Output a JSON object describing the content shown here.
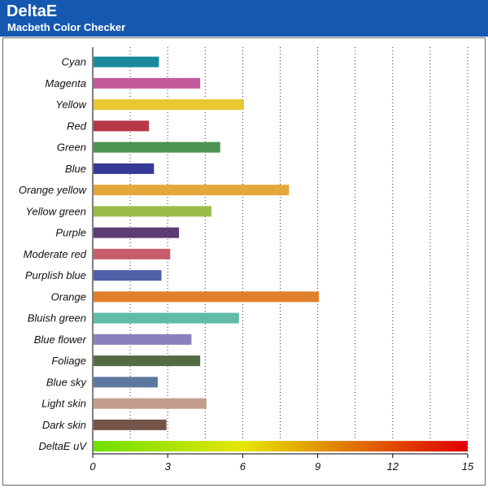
{
  "header": {
    "title": "DeltaE",
    "subtitle": "Macbeth Color Checker",
    "color": "#1558b0"
  },
  "chart_data": {
    "type": "bar",
    "orientation": "horizontal",
    "title": "DeltaE",
    "subtitle": "Macbeth Color Checker",
    "xlim": [
      0,
      15
    ],
    "xticks": [
      0,
      3,
      6,
      9,
      12,
      15
    ],
    "grid": "vertical-dotted",
    "categories": [
      "Cyan",
      "Magenta",
      "Yellow",
      "Red",
      "Green",
      "Blue",
      "Orange yellow",
      "Yellow green",
      "Purple",
      "Moderate red",
      "Purplish blue",
      "Orange",
      "Bluish green",
      "Blue flower",
      "Foliage",
      "Blue sky",
      "Light skin",
      "Dark skin",
      "DeltaE uV"
    ],
    "values": [
      2.65,
      4.3,
      6.05,
      2.25,
      5.1,
      2.45,
      7.85,
      4.75,
      3.45,
      3.1,
      2.75,
      9.05,
      5.85,
      3.95,
      4.3,
      2.6,
      4.55,
      2.95,
      15
    ],
    "colors": [
      "#1a8a9c",
      "#c25a9c",
      "#e8c830",
      "#b83848",
      "#4c9450",
      "#353a96",
      "#e4a838",
      "#9cbc48",
      "#5c3c74",
      "#c85c6c",
      "#5060a8",
      "#e0802c",
      "#60bca4",
      "#8c80bc",
      "#546c44",
      "#5c78a0",
      "#c49c8c",
      "#745448",
      "gradient"
    ],
    "gradient_colors": [
      "#6ee000",
      "#e6e600",
      "#e07000",
      "#e00000"
    ]
  }
}
